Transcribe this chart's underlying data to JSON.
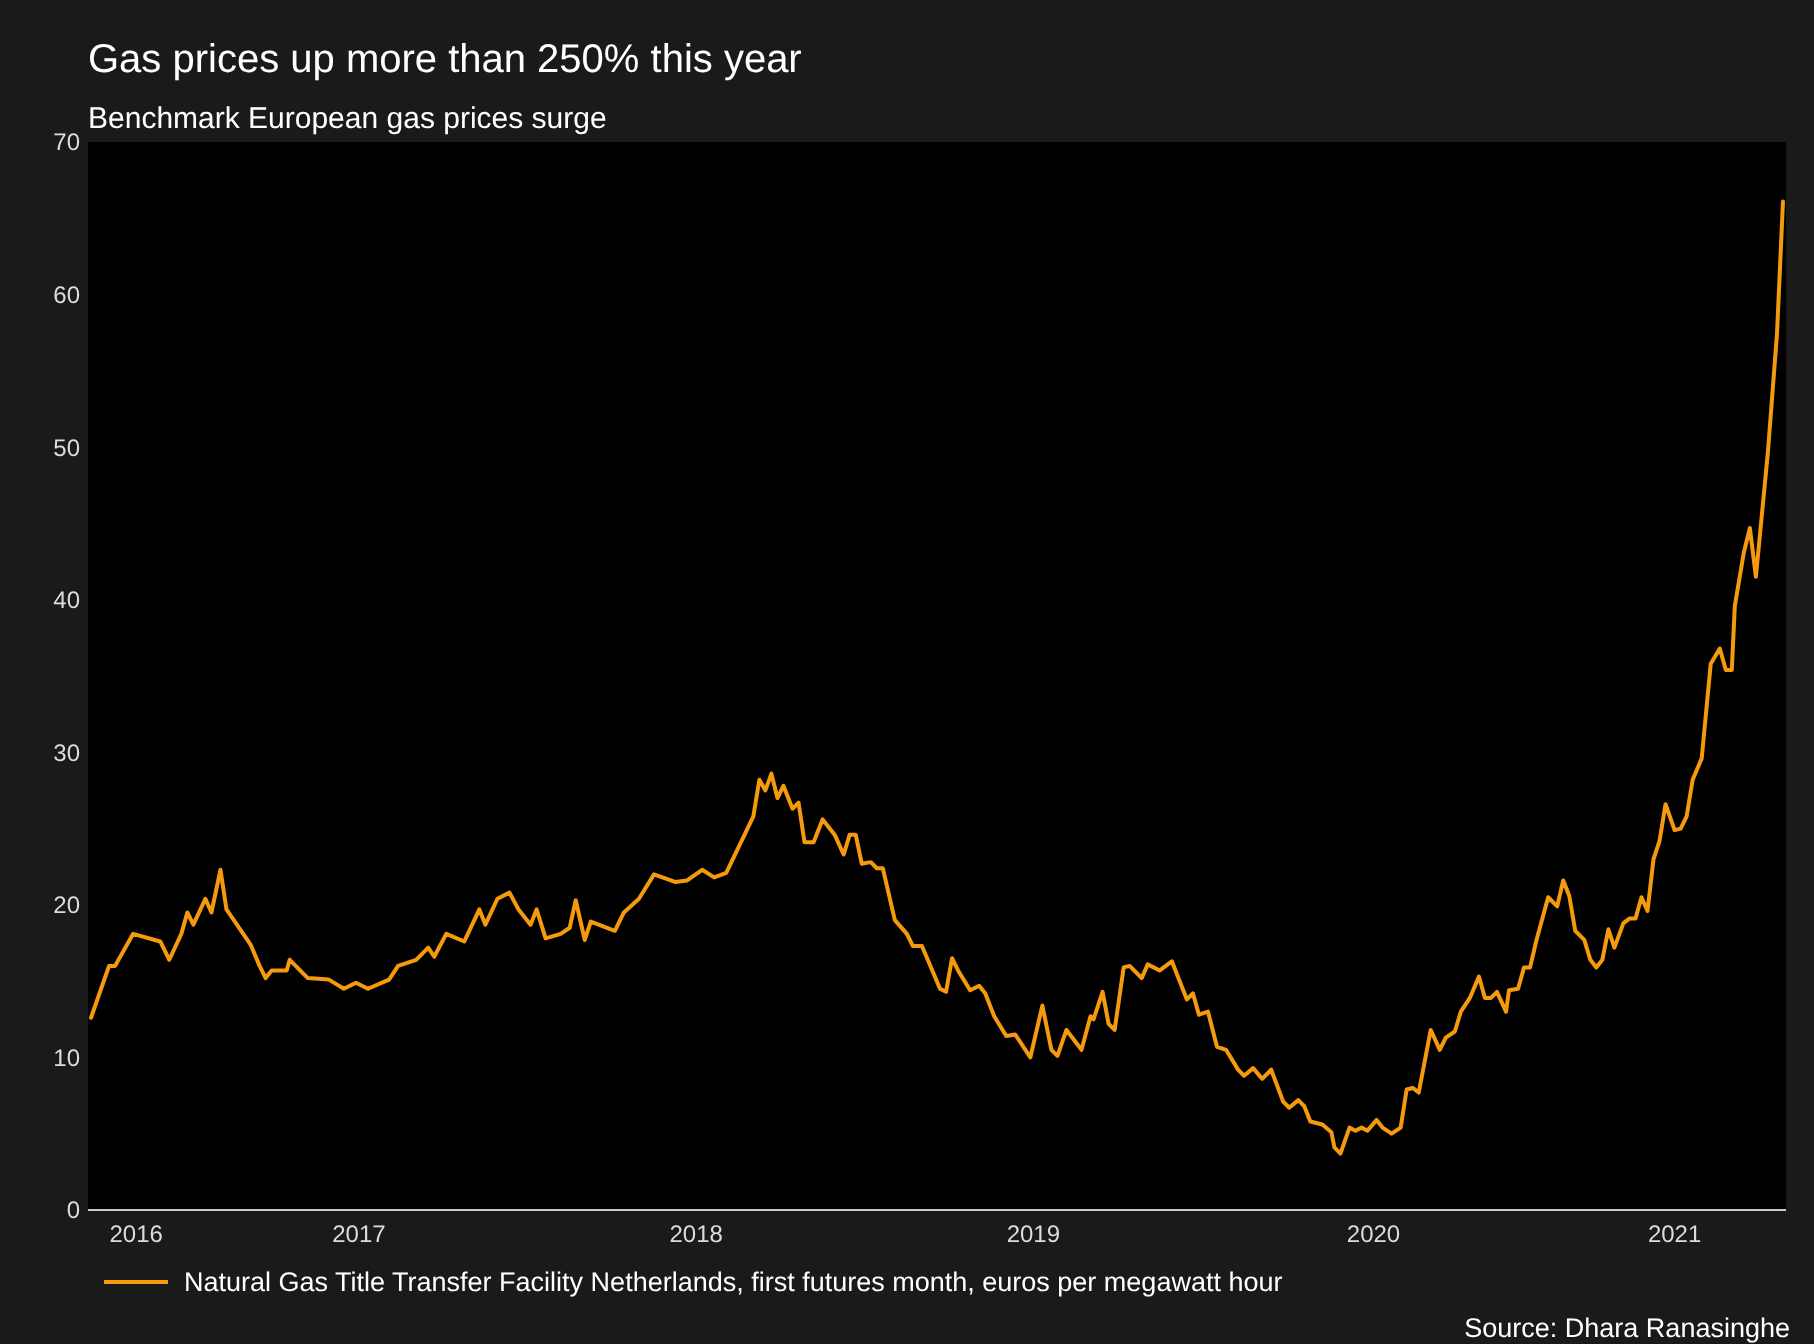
{
  "chart_data": {
    "type": "line",
    "title": "Gas prices up more than 250% this year",
    "subtitle": "Benchmark European gas prices surge",
    "annotations": [
      "Source: Dhara Ranasinghe"
    ],
    "xlim": [
      2016.16,
      2021.8
    ],
    "xticks": [
      {
        "value": 2016.32,
        "label": "2016"
      },
      {
        "value": 2017.06,
        "label": "2017"
      },
      {
        "value": 2018.18,
        "label": "2018"
      },
      {
        "value": 2019.3,
        "label": "2019"
      },
      {
        "value": 2020.43,
        "label": "2020"
      },
      {
        "value": 2021.43,
        "label": "2021"
      }
    ],
    "ylim": [
      0,
      70
    ],
    "yticks": [
      0,
      10,
      20,
      30,
      40,
      50,
      60,
      70
    ],
    "grid": false,
    "legend": "bottom",
    "series": [
      {
        "name": "Natural Gas Title Transfer Facility Netherlands, first futures month, euros per megawatt hour",
        "color": "#f59a0c",
        "x": [
          2016.17,
          2016.23,
          2016.25,
          2016.31,
          2016.4,
          2016.43,
          2016.47,
          2016.49,
          2016.51,
          2016.55,
          2016.57,
          2016.6,
          2016.62,
          2016.7,
          2016.73,
          2016.75,
          2016.77,
          2016.82,
          2016.83,
          2016.89,
          2016.96,
          2017.01,
          2017.05,
          2017.09,
          2017.16,
          2017.19,
          2017.25,
          2017.29,
          2017.31,
          2017.35,
          2017.41,
          2017.46,
          2017.48,
          2017.52,
          2017.56,
          2017.59,
          2017.63,
          2017.65,
          2017.68,
          2017.73,
          2017.76,
          2017.78,
          2017.81,
          2017.83,
          2017.91,
          2017.94,
          2017.99,
          2018.04,
          2018.11,
          2018.15,
          2018.2,
          2018.24,
          2018.28,
          2018.37,
          2018.39,
          2018.41,
          2018.43,
          2018.45,
          2018.47,
          2018.5,
          2018.52,
          2018.54,
          2018.57,
          2018.6,
          2018.64,
          2018.67,
          2018.69,
          2018.71,
          2018.73,
          2018.76,
          2018.78,
          2018.8,
          2018.84,
          2018.88,
          2018.9,
          2018.93,
          2018.99,
          2019.01,
          2019.03,
          2019.05,
          2019.09,
          2019.12,
          2019.14,
          2019.17,
          2019.21,
          2019.24,
          2019.29,
          2019.33,
          2019.36,
          2019.38,
          2019.41,
          2019.46,
          2019.49,
          2019.5,
          2019.53,
          2019.55,
          2019.57,
          2019.6,
          2019.62,
          2019.66,
          2019.68,
          2019.72,
          2019.76,
          2019.81,
          2019.83,
          2019.85,
          2019.88,
          2019.91,
          2019.94,
          2019.98,
          2020.0,
          2020.03,
          2020.06,
          2020.09,
          2020.13,
          2020.15,
          2020.18,
          2020.2,
          2020.22,
          2020.26,
          2020.29,
          2020.3,
          2020.32,
          2020.35,
          2020.37,
          2020.39,
          2020.41,
          2020.44,
          2020.46,
          2020.49,
          2020.52,
          2020.54,
          2020.56,
          2020.58,
          2020.62,
          2020.65,
          2020.67,
          2020.7,
          2020.72,
          2020.75,
          2020.78,
          2020.8,
          2020.82,
          2020.84,
          2020.87,
          2020.88,
          2020.91,
          2020.93,
          2020.95,
          2020.97,
          2021.01,
          2021.04,
          2021.06,
          2021.08,
          2021.1,
          2021.13,
          2021.15,
          2021.17,
          2021.19,
          2021.21,
          2021.23,
          2021.26,
          2021.28,
          2021.3,
          2021.32,
          2021.34,
          2021.36,
          2021.38,
          2021.4,
          2021.43,
          2021.45,
          2021.47,
          2021.49,
          2021.52,
          2021.55,
          2021.58,
          2021.6,
          2021.62,
          2021.63,
          2021.66,
          2021.68,
          2021.7,
          2021.74,
          2021.77,
          2021.79
        ],
        "values": [
          12.6,
          16.0,
          16.0,
          18.1,
          17.6,
          16.4,
          18.1,
          19.5,
          18.7,
          20.4,
          19.5,
          22.3,
          19.7,
          17.4,
          16.0,
          15.2,
          15.7,
          15.7,
          16.4,
          15.2,
          15.1,
          14.5,
          14.9,
          14.5,
          15.1,
          16.0,
          16.4,
          17.2,
          16.6,
          18.1,
          17.6,
          19.7,
          18.7,
          20.4,
          20.8,
          19.7,
          18.7,
          19.7,
          17.8,
          18.1,
          18.5,
          20.3,
          17.7,
          18.9,
          18.3,
          19.5,
          20.4,
          22.0,
          21.5,
          21.6,
          22.3,
          21.8,
          22.1,
          25.8,
          28.2,
          27.5,
          28.6,
          27.0,
          27.8,
          26.3,
          26.7,
          24.1,
          24.1,
          25.6,
          24.6,
          23.3,
          24.6,
          24.6,
          22.7,
          22.8,
          22.4,
          22.4,
          19.0,
          18.1,
          17.3,
          17.3,
          14.5,
          14.3,
          16.5,
          15.7,
          14.4,
          14.7,
          14.2,
          12.7,
          11.4,
          11.5,
          10.0,
          13.4,
          10.5,
          10.1,
          11.8,
          10.5,
          12.7,
          12.5,
          14.3,
          12.2,
          11.8,
          15.9,
          16.0,
          15.2,
          16.1,
          15.7,
          16.3,
          13.8,
          14.2,
          12.8,
          13.0,
          10.7,
          10.5,
          9.2,
          8.8,
          9.3,
          8.6,
          9.2,
          7.1,
          6.7,
          7.2,
          6.8,
          5.8,
          5.6,
          5.1,
          4.1,
          3.7,
          5.4,
          5.2,
          5.4,
          5.2,
          5.9,
          5.4,
          5.0,
          5.4,
          7.9,
          8.0,
          7.7,
          11.8,
          10.5,
          11.3,
          11.7,
          13.0,
          13.9,
          15.3,
          13.9,
          13.9,
          14.3,
          13.0,
          14.4,
          14.5,
          15.9,
          15.9,
          17.6,
          20.5,
          19.9,
          21.6,
          20.6,
          18.3,
          17.7,
          16.4,
          15.9,
          16.4,
          18.4,
          17.2,
          18.8,
          19.1,
          19.1,
          20.5,
          19.6,
          23.0,
          24.2,
          26.6,
          24.9,
          25.0,
          25.8,
          28.2,
          29.6,
          35.8,
          36.8,
          35.4,
          35.4,
          39.6,
          43.1,
          44.7,
          41.5,
          49.7,
          57.4,
          66.1
        ]
      }
    ]
  }
}
